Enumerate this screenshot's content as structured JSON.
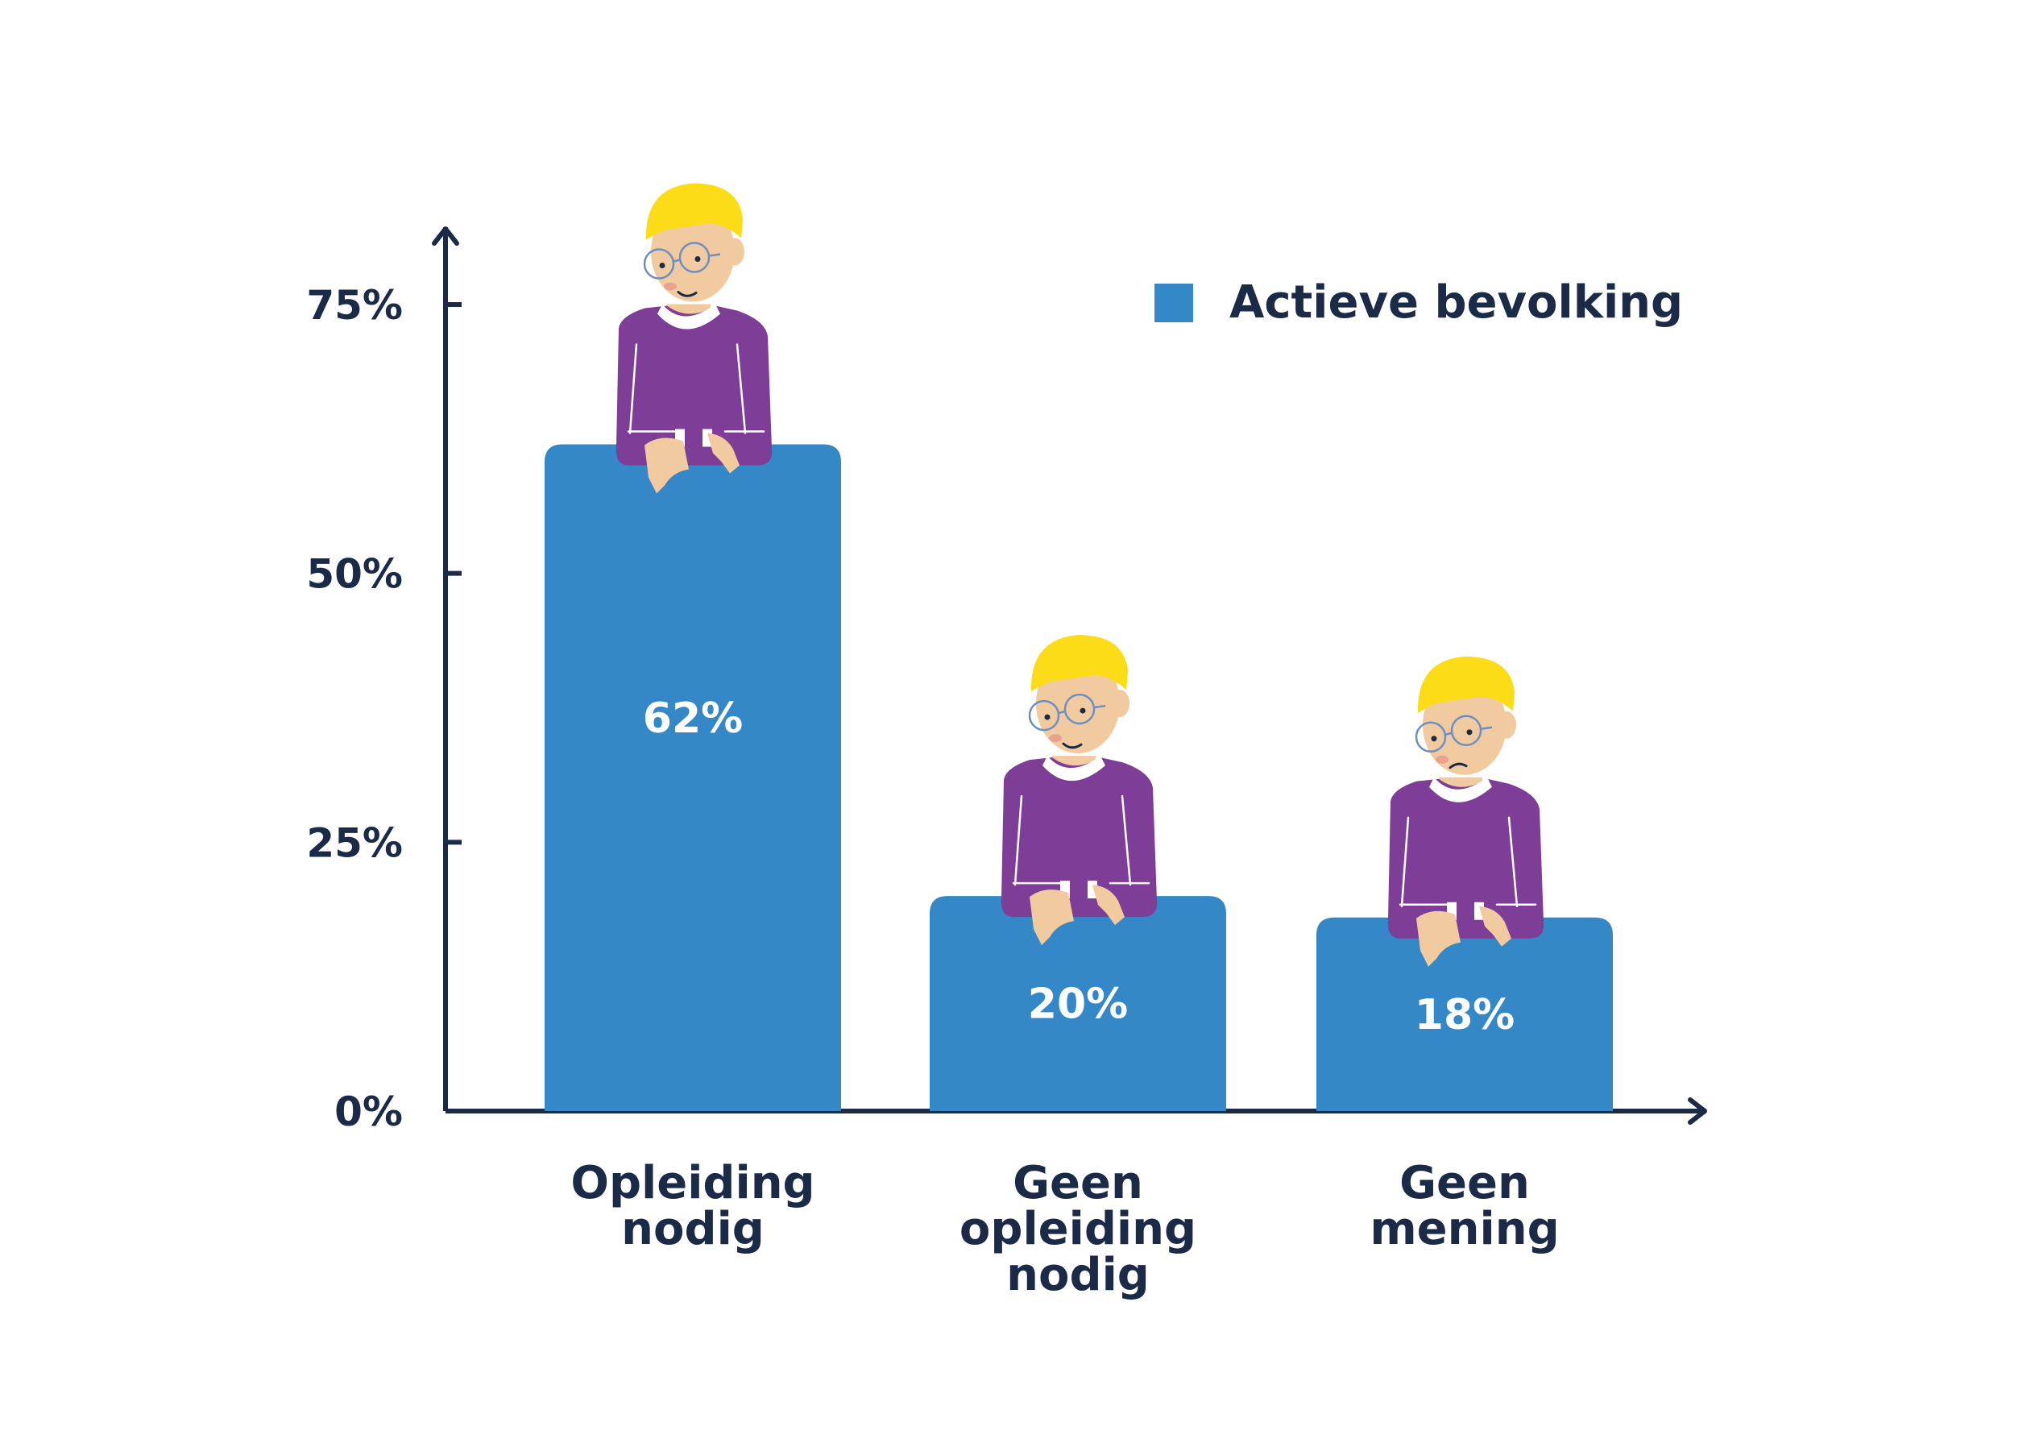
{
  "chart_data": {
    "type": "bar",
    "categories": [
      [
        "Opleiding",
        "nodig"
      ],
      [
        "Geen",
        "opleiding",
        "nodig"
      ],
      [
        "Geen",
        "mening"
      ]
    ],
    "series": [
      {
        "name": "Actieve bevolking",
        "values": [
          62,
          20,
          18
        ]
      }
    ],
    "value_labels": [
      "62%",
      "20%",
      "18%"
    ],
    "yticks": [
      0,
      25,
      50,
      75
    ],
    "ytick_labels": [
      "0%",
      "25%",
      "50%",
      "75%"
    ],
    "ylim": [
      0,
      75
    ],
    "legend": {
      "label": "Actieve bevolking",
      "position": "top-right"
    },
    "grid": false,
    "title": "",
    "xlabel": "",
    "ylabel": ""
  },
  "colors": {
    "bar": "#3588c7",
    "axis": "#1b2a47",
    "value_text": "#ffffff",
    "sweater": "#7e3d97",
    "hair": "#fbdc16",
    "skin": "#f2caa0",
    "collar": "#ffffff"
  },
  "icons": [
    "person-icon"
  ]
}
